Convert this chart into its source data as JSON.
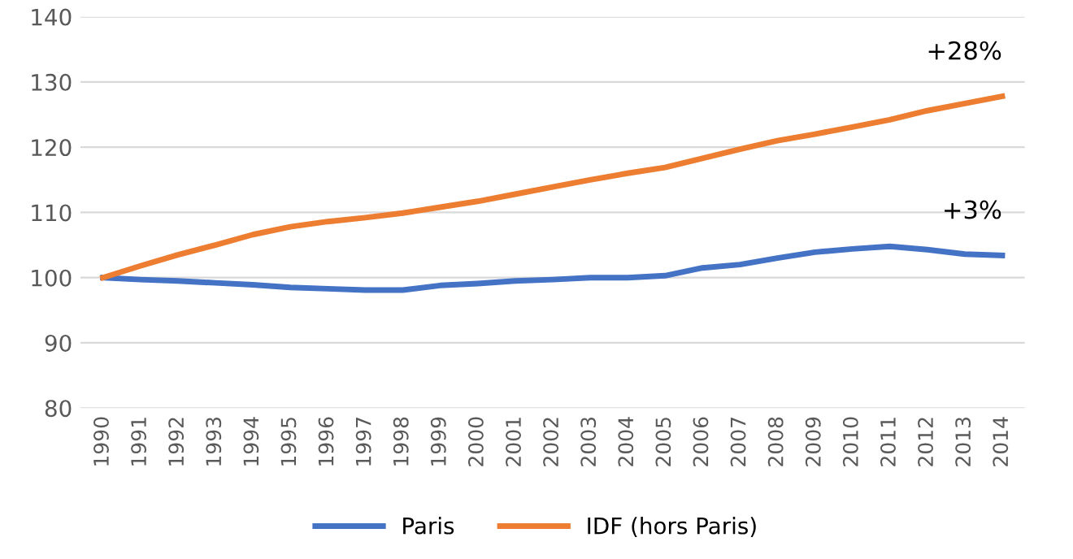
{
  "chart_data": {
    "type": "line",
    "categories": [
      "1990",
      "1991",
      "1992",
      "1993",
      "1994",
      "1995",
      "1996",
      "1997",
      "1998",
      "1999",
      "2000",
      "2001",
      "2002",
      "2003",
      "2004",
      "2005",
      "2006",
      "2007",
      "2008",
      "2009",
      "2010",
      "2011",
      "2012",
      "2013",
      "2014"
    ],
    "series": [
      {
        "name": "Paris",
        "color": "#4472c4",
        "values": [
          100,
          99.7,
          99.5,
          99.2,
          98.9,
          98.5,
          98.3,
          98.1,
          98.1,
          98.8,
          99.1,
          99.5,
          99.7,
          100,
          100,
          100.3,
          101.5,
          102,
          103,
          103.9,
          104.4,
          104.8,
          104.3,
          103.6,
          103.4
        ]
      },
      {
        "name": "IDF (hors Paris)",
        "color": "#ed7d31",
        "values": [
          100,
          101.8,
          103.5,
          105,
          106.6,
          107.8,
          108.6,
          109.2,
          109.9,
          110.8,
          111.7,
          112.8,
          113.9,
          115,
          116,
          116.9,
          118.3,
          119.7,
          121,
          122,
          123.1,
          124.2,
          125.6,
          126.7,
          127.8
        ]
      }
    ],
    "annotations": [
      "+3%",
      "+28%"
    ],
    "ylim": [
      80,
      140
    ],
    "yticks": [
      80,
      90,
      100,
      110,
      120,
      130,
      140
    ],
    "grid": "y",
    "legend": "bottom",
    "marker": "none",
    "line_style": "solid"
  }
}
